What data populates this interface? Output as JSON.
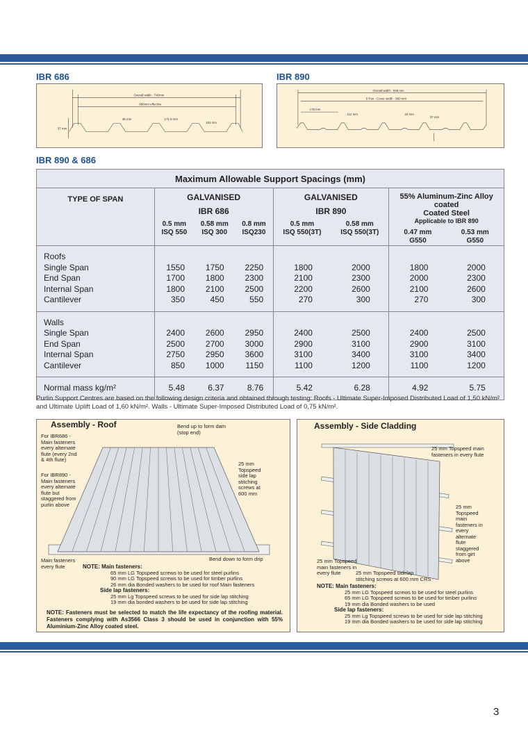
{
  "ibr686": {
    "title": "IBR 686",
    "overall": "Overall width - 740mm",
    "effective": "686mm effective",
    "d1": "35 mm",
    "d2": "171.5 mm",
    "d3": "102 mm",
    "height": "37 mm"
  },
  "ibr890": {
    "title": "IBR 890",
    "overall": "Overall width - 938 mm",
    "cover": "5 Pan - Cover width - 890 mm",
    "d1": "178 mm",
    "d2": "112 mm",
    "d3": "33 mm",
    "height": "37 mm"
  },
  "section_title": "IBR 890 & 686",
  "table": {
    "title": "Maximum Allowable Support Spacings (mm)",
    "type_header": "TYPE OF SPAN",
    "groups": [
      {
        "l1": "GALVANISED",
        "l2": "IBR 686",
        "l3": "",
        "cols": [
          [
            "0.5 mm",
            "ISQ 550"
          ],
          [
            "0.58 mm",
            "ISQ 300"
          ],
          [
            "0.8 mm",
            "ISQ230"
          ]
        ]
      },
      {
        "l1": "GALVANISED",
        "l2": "IBR 890",
        "l3": "",
        "cols": [
          [
            "0.5 mm",
            "ISQ 550(3T)"
          ],
          [
            "0.58 mm",
            "ISQ 550(3T)"
          ]
        ]
      },
      {
        "l1": "55% Aluminum-Zinc Alloy coated",
        "l2": "Coated Steel",
        "l3": "Applicable to IBR 890",
        "cols": [
          [
            "0.47 mm",
            "G550"
          ],
          [
            "0.53 mm",
            "G550"
          ]
        ]
      }
    ],
    "sections": [
      {
        "heading": "Roofs",
        "rows": [
          {
            "label": "Single Span",
            "values": [
              1550,
              1750,
              2250,
              1800,
              2000,
              1800,
              2000
            ]
          },
          {
            "label": "End Span",
            "values": [
              1700,
              1800,
              2300,
              2100,
              2300,
              2000,
              2300
            ]
          },
          {
            "label": "Internal Span",
            "values": [
              1800,
              2100,
              2500,
              2200,
              2600,
              2100,
              2600
            ]
          },
          {
            "label": "Cantilever",
            "values": [
              350,
              450,
              550,
              270,
              300,
              270,
              300
            ]
          }
        ]
      },
      {
        "heading": "Walls",
        "rows": [
          {
            "label": "Single Span",
            "values": [
              2400,
              2600,
              2950,
              2400,
              2500,
              2400,
              2500
            ]
          },
          {
            "label": "End Span",
            "values": [
              2500,
              2700,
              3000,
              2900,
              3100,
              2900,
              3100
            ]
          },
          {
            "label": "Internal Span",
            "values": [
              2750,
              2950,
              3600,
              3100,
              3400,
              3100,
              3400
            ]
          },
          {
            "label": "Cantilever",
            "values": [
              850,
              1000,
              1150,
              1100,
              1200,
              1100,
              1200
            ]
          }
        ]
      },
      {
        "heading": "",
        "rows": [
          {
            "label": "Normal mass kg/m²",
            "values": [
              "5.48",
              "6.37",
              "8.76",
              "5.42",
              "6.28",
              "4.92",
              "5.75"
            ]
          }
        ]
      }
    ]
  },
  "footnote": "Purlin Support Centres are based on the following design criteria and obtained through testing: Roofs - Ultimate Super-Imposed Distributed Load of 1,50 kN/m² and Ultimate Uplift Load of 1,60 kN/m². Walls - Ultimate Super-Imposed Distributed Load of 0,75 kN/m².",
  "roof": {
    "title": "Assembly - Roof",
    "l_bend_up": "Bend up to form dam (stop end)",
    "l_686": "For IBR686 - Main fasteners every alternate flute (every 2nd & 4th flute)",
    "l_890": "For IBR890 - Main fasteners every alternate flute but staggered from purlin above",
    "l_side": "25 mm Topspeed side lap stitching screws at 600 mm",
    "l_main": "Main fasteners every flute",
    "l_bend_down": "Bend down to form drip",
    "note_main": "NOTE: Main fasteners:",
    "main_lines": [
      "65 mm LG Topspeed screws to be used for steel purlins",
      "90 mm LG Topspeed screws to be used for timber purlins",
      "26 mm dia Bonded washers to be used for roof Main fasteners"
    ],
    "note_side": "Side lap fasteners:",
    "side_lines": [
      "25 mm Lg Topspeed screws to be used for side lap stitching",
      "19 mm dia bonded washers to be used for side lap stitching"
    ],
    "warning": "NOTE: Fasteners must be selected to match the life expectancy of the roofing material. Fasteners complying with As3566 Class 3 should be used in conjunction with 55% Aluminium-Zinc Alloy coated steel."
  },
  "side": {
    "title": "Assembly - Side Cladding",
    "l_top": "25 mm Topspeed main fasteners in every flute",
    "l_alt": "25 mm Topspeed main fasteners in every alternate flute staggered from girt above",
    "l_bottom": "25 mm Topspeed main fasteners in every flute",
    "l_stitch": "25 mm Topspeed sidelap stitching screws at 600 mm CRS",
    "note_main": "NOTE: Main fasteners:",
    "main_lines": [
      "25 mm LG Topspeed screws to be used for steel purlins",
      "65 mm LG Topspeed screws to be used for timber purlins",
      "19 mm dia Bonded washers to be used"
    ],
    "note_side": "Side lap fasteners:",
    "side_lines": [
      "25 mm Lg Topspeed screws to be used for side lap stitching",
      "19 mm dia Bonded washers to be used for side lap stitching"
    ]
  },
  "page_number": "3"
}
